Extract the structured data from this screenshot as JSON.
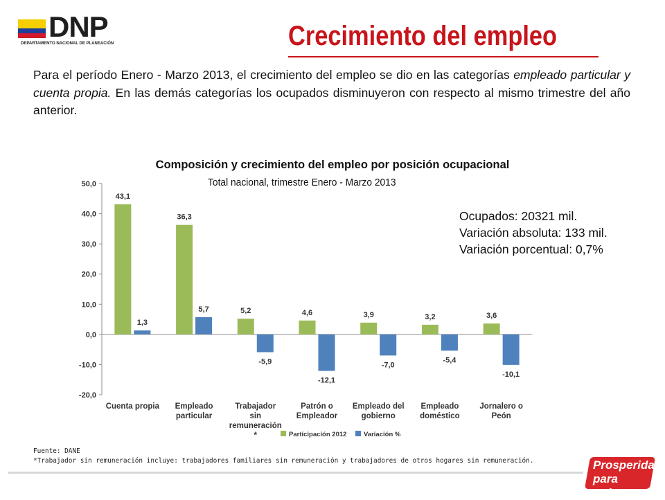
{
  "header": {
    "logo_text": "DNP",
    "logo_subtitle": "DEPARTAMENTO NACIONAL DE PLANEACIÓN",
    "title": "Crecimiento del empleo"
  },
  "intro": {
    "part1": "Para el período Enero -  Marzo 2013, el crecimiento del empleo se dio en las categorías ",
    "part2_italic": "empleado particular y cuenta propia.",
    "part3": " En las demás categorías los ocupados disminuyeron con respecto al mismo trimestre del año anterior."
  },
  "info": {
    "line1": "Ocupados: 20321 mil.",
    "line2": "Variación absoluta: 133 mil.",
    "line3": "Variación porcentual: 0,7%"
  },
  "footnote": {
    "source": "Fuente: DANE",
    "note": "*Trabajador sin remuneración incluye: trabajadores familiares sin remuneración y trabajadores de otros  hogares sin remuneración."
  },
  "badge": {
    "line1": "Prosperidad",
    "line2": "para todos"
  },
  "colors": {
    "title_red": "#c8141a",
    "series_green": "#9bbb59",
    "series_blue": "#4f81bd"
  },
  "chart_data": {
    "type": "bar",
    "title": "Composición y crecimiento del empleo por posición ocupacional",
    "subtitle": "Total nacional, trimestre Enero -  Marzo 2013",
    "categories": [
      [
        "Cuenta propia"
      ],
      [
        "Empleado",
        "particular"
      ],
      [
        "Trabajador",
        "sin",
        "remuneración",
        "*"
      ],
      [
        "Patrón o",
        "Empleador"
      ],
      [
        "Empleado del",
        "gobierno"
      ],
      [
        "Empleado",
        "doméstico"
      ],
      [
        "Jornalero o",
        "Peón"
      ]
    ],
    "series": [
      {
        "name": "Participación 2012",
        "color": "#9bbb59",
        "values": [
          43.1,
          36.3,
          5.2,
          4.6,
          3.9,
          3.2,
          3.6
        ],
        "labels": [
          "43,1",
          "36,3",
          "5,2",
          "4,6",
          "3,9",
          "3,2",
          "3,6"
        ]
      },
      {
        "name": "Variación %",
        "color": "#4f81bd",
        "values": [
          1.3,
          5.7,
          -5.9,
          -12.1,
          -7.0,
          -5.4,
          -10.1
        ],
        "labels": [
          "1,3",
          "5,7",
          "-5,9",
          "-12,1",
          "-7,0",
          "-5,4",
          "-10,1"
        ]
      }
    ],
    "ylim": [
      -20,
      50
    ],
    "yticks": [
      50,
      40,
      30,
      20,
      10,
      0,
      -10,
      -20
    ],
    "ytick_labels": [
      "50,0",
      "40,0",
      "30,0",
      "20,0",
      "10,0",
      "0,0",
      "-10,0",
      "-20,0"
    ],
    "grid": false,
    "legend_position": "bottom"
  }
}
